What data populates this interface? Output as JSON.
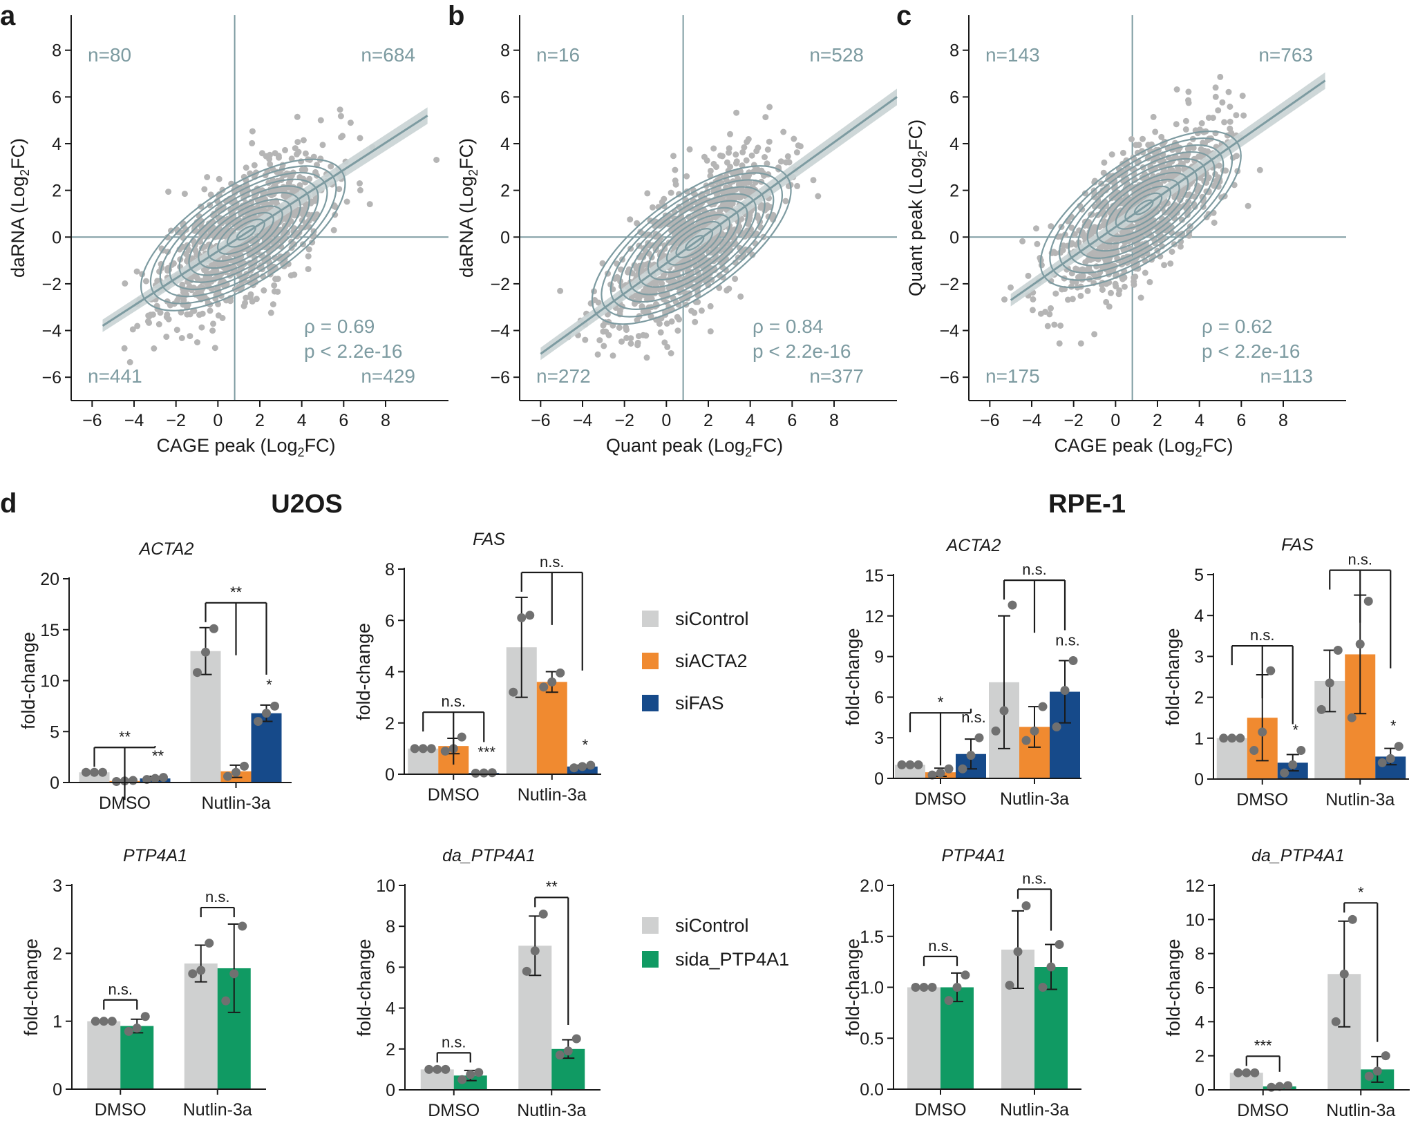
{
  "panels": [
    "a",
    "b",
    "c",
    "d"
  ],
  "colors": {
    "siControl": "#cfd0d0",
    "siACTA2": "#f08a30",
    "siFAS": "#164a8a",
    "sida_PTP4A1": "#109a63",
    "scatter_point": "#b5b5b5",
    "contour": "#7d9ba1",
    "dot": "#707070"
  },
  "chart_data": [
    {
      "type": "scatter",
      "panel": "a",
      "xlabel": "CAGE peak (Log2FC)",
      "ylabel": "daRNA (Log2FC)",
      "xticks": [
        -6,
        -4,
        -2,
        0,
        2,
        4,
        6,
        8
      ],
      "yticks": [
        -6,
        -4,
        -2,
        0,
        2,
        4,
        6,
        8
      ],
      "xlim": [
        -7,
        11
      ],
      "ylim": [
        -7,
        9.5
      ],
      "quadrant_counts": {
        "top_left": "n=80",
        "top_right": "n=684",
        "bottom_left": "n=441",
        "bottom_right": "n=429"
      },
      "rho": "ρ  =  0.69",
      "p": "p < 2.2e-16",
      "fit_line": {
        "x": [
          -5.5,
          10
        ],
        "y": [
          -3.8,
          5.2
        ]
      },
      "seed": 11
    },
    {
      "type": "scatter",
      "panel": "b",
      "xlabel": "Quant peak (Log2FC)",
      "ylabel": "daRNA (Log2FC)",
      "xticks": [
        -6,
        -4,
        -2,
        0,
        2,
        4,
        6,
        8
      ],
      "yticks": [
        -6,
        -4,
        -2,
        0,
        2,
        4,
        6,
        8
      ],
      "xlim": [
        -7,
        11
      ],
      "ylim": [
        -7,
        9.5
      ],
      "quadrant_counts": {
        "top_left": "n=16",
        "top_right": "n=528",
        "bottom_left": "n=272",
        "bottom_right": "n=377"
      },
      "rho": "ρ  =  0.84",
      "p": "p < 2.2e-16",
      "fit_line": {
        "x": [
          -6,
          11
        ],
        "y": [
          -5.0,
          6.0
        ]
      },
      "seed": 23
    },
    {
      "type": "scatter",
      "panel": "c",
      "xlabel": "CAGE peak (Log2FC)",
      "ylabel": "Quant peak (Log2FC)",
      "xticks": [
        -6,
        -4,
        -2,
        0,
        2,
        4,
        6,
        8
      ],
      "yticks": [
        -6,
        -4,
        -2,
        0,
        2,
        4,
        6,
        8
      ],
      "xlim": [
        -7,
        11
      ],
      "ylim": [
        -7,
        9.5
      ],
      "quadrant_counts": {
        "top_left": "n=143",
        "top_right": "n=763",
        "bottom_left": "n=175",
        "bottom_right": "n=113"
      },
      "rho": "ρ  =  0.62",
      "p": "p < 2.2e-16",
      "fit_line": {
        "x": [
          -5,
          10
        ],
        "y": [
          -2.7,
          6.7
        ]
      },
      "seed": 37
    },
    {
      "type": "bar",
      "panel": "d",
      "cell": "U2OS",
      "title": "ACTA2",
      "ylabel": "fold-change",
      "ylim": [
        0,
        20
      ],
      "yticks": [
        0,
        5,
        10,
        15,
        20
      ],
      "categories": [
        "DMSO",
        "Nutlin-3a"
      ],
      "series": [
        {
          "name": "siControl",
          "values": [
            1.0,
            12.9
          ],
          "errors": [
            0,
            2.3
          ],
          "points": [
            [
              1,
              1,
              1
            ],
            [
              10.8,
              12.8,
              15.1
            ]
          ]
        },
        {
          "name": "siACTA2",
          "values": [
            0.15,
            1.1
          ],
          "errors": [
            0.1,
            0.6
          ],
          "points": [
            [
              0.1,
              0.15,
              0.2
            ],
            [
              0.6,
              1.0,
              1.6
            ]
          ]
        },
        {
          "name": "siFAS",
          "values": [
            0.4,
            6.8
          ],
          "errors": [
            0.2,
            0.8
          ],
          "points": [
            [
              0.3,
              0.4,
              0.5
            ],
            [
              6.0,
              6.8,
              7.5
            ]
          ]
        }
      ],
      "sig": [
        {
          "type": "fork3",
          "group": 0,
          "label": "**"
        },
        {
          "type": "single",
          "group": 0,
          "series": 2,
          "label": "**"
        },
        {
          "type": "fork3",
          "group": 1,
          "label": "**"
        },
        {
          "type": "single",
          "group": 1,
          "series": 2,
          "label": "*"
        }
      ]
    },
    {
      "type": "bar",
      "panel": "d",
      "cell": "U2OS",
      "title": "FAS",
      "ylabel": "fold-change",
      "ylim": [
        0,
        8
      ],
      "yticks": [
        0,
        2,
        4,
        6,
        8
      ],
      "categories": [
        "DMSO",
        "Nutlin-3a"
      ],
      "series": [
        {
          "name": "siControl",
          "values": [
            1.0,
            4.95
          ],
          "errors": [
            0,
            1.95
          ],
          "points": [
            [
              1,
              1,
              1
            ],
            [
              3.2,
              6.1,
              6.2
            ]
          ]
        },
        {
          "name": "siACTA2",
          "values": [
            1.1,
            3.6
          ],
          "errors": [
            0.3,
            0.4
          ],
          "points": [
            [
              0.9,
              1.0,
              1.45
            ],
            [
              3.4,
              3.6,
              3.95
            ]
          ]
        },
        {
          "name": "siFAS",
          "values": [
            0.05,
            0.3
          ],
          "errors": [
            0.02,
            0.05
          ],
          "points": [
            [
              0.04,
              0.05,
              0.06
            ],
            [
              0.25,
              0.3,
              0.35
            ]
          ]
        }
      ],
      "sig": [
        {
          "type": "fork3",
          "group": 0,
          "label": "n.s."
        },
        {
          "type": "single",
          "group": 0,
          "series": 2,
          "label": "***"
        },
        {
          "type": "fork3",
          "group": 1,
          "label": "n.s."
        },
        {
          "type": "single",
          "group": 1,
          "series": 2,
          "label": "*"
        }
      ]
    },
    {
      "type": "bar",
      "panel": "d",
      "cell": "RPE-1",
      "title": "ACTA2",
      "ylabel": "fold-change",
      "ylim": [
        0,
        15
      ],
      "yticks": [
        0,
        3,
        6,
        9,
        12,
        15
      ],
      "categories": [
        "DMSO",
        "Nutlin-3a"
      ],
      "series": [
        {
          "name": "siControl",
          "values": [
            1.0,
            7.1
          ],
          "errors": [
            0,
            4.9
          ],
          "points": [
            [
              1,
              1,
              1
            ],
            [
              3.5,
              5.0,
              12.8
            ]
          ]
        },
        {
          "name": "siACTA2",
          "values": [
            0.45,
            3.8
          ],
          "errors": [
            0.3,
            1.5
          ],
          "points": [
            [
              0.25,
              0.4,
              0.7
            ],
            [
              2.8,
              3.5,
              5.3
            ]
          ]
        },
        {
          "name": "siFAS",
          "values": [
            1.8,
            6.4
          ],
          "errors": [
            1.1,
            2.3
          ],
          "points": [
            [
              0.7,
              1.7,
              3.0
            ],
            [
              3.8,
              6.5,
              8.7
            ]
          ]
        }
      ],
      "sig": [
        {
          "type": "fork3",
          "group": 0,
          "label": "*"
        },
        {
          "type": "single",
          "group": 0,
          "series": 2,
          "label": "n.s."
        },
        {
          "type": "fork3",
          "group": 1,
          "label": "n.s."
        },
        {
          "type": "single",
          "group": 1,
          "series": 2,
          "label": "n.s."
        }
      ]
    },
    {
      "type": "bar",
      "panel": "d",
      "cell": "RPE-1",
      "title": "FAS",
      "ylabel": "fold-change",
      "ylim": [
        0,
        5
      ],
      "yticks": [
        0,
        1,
        2,
        3,
        4,
        5
      ],
      "categories": [
        "DMSO",
        "Nutlin-3a"
      ],
      "series": [
        {
          "name": "siControl",
          "values": [
            1.0,
            2.4
          ],
          "errors": [
            0,
            0.75
          ],
          "points": [
            [
              1,
              1,
              1
            ],
            [
              1.7,
              2.35,
              3.15
            ]
          ]
        },
        {
          "name": "siACTA2",
          "values": [
            1.5,
            3.05
          ],
          "errors": [
            1.05,
            1.45
          ],
          "points": [
            [
              0.7,
              1.15,
              2.65
            ],
            [
              1.5,
              3.3,
              4.35
            ]
          ]
        },
        {
          "name": "siFAS",
          "values": [
            0.4,
            0.55
          ],
          "errors": [
            0.2,
            0.2
          ],
          "points": [
            [
              0.15,
              0.35,
              0.7
            ],
            [
              0.4,
              0.5,
              0.8
            ]
          ]
        }
      ],
      "sig": [
        {
          "type": "fork3",
          "group": 0,
          "label": "n.s."
        },
        {
          "type": "single",
          "group": 0,
          "series": 2,
          "label": "*"
        },
        {
          "type": "fork3",
          "group": 1,
          "label": "n.s."
        },
        {
          "type": "single",
          "group": 1,
          "series": 2,
          "label": "*"
        }
      ]
    },
    {
      "type": "bar",
      "panel": "d",
      "cell": "U2OS",
      "title": "PTP4A1",
      "ylabel": "fold-change",
      "ylim": [
        0,
        3
      ],
      "yticks": [
        0,
        1,
        2,
        3
      ],
      "categories": [
        "DMSO",
        "Nutlin-3a"
      ],
      "series": [
        {
          "name": "siControl",
          "values": [
            1.0,
            1.85
          ],
          "errors": [
            0,
            0.27
          ],
          "points": [
            [
              1,
              1,
              1
            ],
            [
              1.7,
              1.75,
              2.15
            ]
          ]
        },
        {
          "name": "sida_PTP4A1",
          "values": [
            0.93,
            1.78
          ],
          "errors": [
            0.1,
            0.65
          ],
          "points": [
            [
              0.85,
              0.9,
              1.07
            ],
            [
              1.3,
              1.7,
              2.4
            ]
          ]
        }
      ],
      "sig": [
        {
          "type": "pair",
          "group": 0,
          "label": "n.s."
        },
        {
          "type": "pair",
          "group": 1,
          "label": "n.s."
        }
      ]
    },
    {
      "type": "bar",
      "panel": "d",
      "cell": "U2OS",
      "title": "da_PTP4A1",
      "ylabel": "fold-change",
      "ylim": [
        0,
        10
      ],
      "yticks": [
        0,
        2,
        4,
        6,
        8,
        10
      ],
      "categories": [
        "DMSO",
        "Nutlin-3a"
      ],
      "series": [
        {
          "name": "siControl",
          "values": [
            1.0,
            7.05
          ],
          "errors": [
            0,
            1.45
          ],
          "points": [
            [
              1,
              1,
              1
            ],
            [
              5.8,
              6.8,
              8.6
            ]
          ]
        },
        {
          "name": "sida_PTP4A1",
          "values": [
            0.7,
            2.0
          ],
          "errors": [
            0.25,
            0.45
          ],
          "points": [
            [
              0.5,
              0.75,
              0.85
            ],
            [
              1.7,
              1.9,
              2.5
            ]
          ]
        }
      ],
      "sig": [
        {
          "type": "pair",
          "group": 0,
          "label": "n.s."
        },
        {
          "type": "pair",
          "group": 1,
          "label": "**"
        }
      ]
    },
    {
      "type": "bar",
      "panel": "d",
      "cell": "RPE-1",
      "title": "PTP4A1",
      "ylabel": "fold-change",
      "ylim": [
        0,
        2.0
      ],
      "yticks": [
        0.0,
        0.5,
        1.0,
        1.5,
        2.0
      ],
      "categories": [
        "DMSO",
        "Nutlin-3a"
      ],
      "series": [
        {
          "name": "siControl",
          "values": [
            1.0,
            1.37
          ],
          "errors": [
            0,
            0.38
          ],
          "points": [
            [
              1,
              1,
              1
            ],
            [
              1.02,
              1.35,
              1.8
            ]
          ]
        },
        {
          "name": "sida_PTP4A1",
          "values": [
            1.0,
            1.2
          ],
          "errors": [
            0.14,
            0.22
          ],
          "points": [
            [
              0.87,
              1.0,
              1.12
            ],
            [
              1.0,
              1.2,
              1.42
            ]
          ]
        }
      ],
      "sig": [
        {
          "type": "pair",
          "group": 0,
          "label": "n.s."
        },
        {
          "type": "pair",
          "group": 1,
          "label": "n.s."
        }
      ]
    },
    {
      "type": "bar",
      "panel": "d",
      "cell": "RPE-1",
      "title": "da_PTP4A1",
      "ylabel": "fold-change",
      "ylim": [
        0,
        12
      ],
      "yticks": [
        0,
        2,
        4,
        6,
        8,
        10,
        12
      ],
      "categories": [
        "DMSO",
        "Nutlin-3a"
      ],
      "series": [
        {
          "name": "siControl",
          "values": [
            1.0,
            6.8
          ],
          "errors": [
            0,
            3.1
          ],
          "points": [
            [
              1,
              1,
              1
            ],
            [
              4.0,
              6.8,
              10.0
            ]
          ]
        },
        {
          "name": "sida_PTP4A1",
          "values": [
            0.2,
            1.2
          ],
          "errors": [
            0.05,
            0.75
          ],
          "points": [
            [
              0.15,
              0.2,
              0.25
            ],
            [
              0.8,
              1.1,
              2.0
            ]
          ]
        }
      ],
      "sig": [
        {
          "type": "pair",
          "group": 0,
          "label": "***"
        },
        {
          "type": "pair",
          "group": 1,
          "label": "*"
        }
      ]
    }
  ],
  "legend_top": [
    {
      "name": "siControl",
      "color": "#cfd0d0"
    },
    {
      "name": "siACTA2",
      "color": "#f08a30"
    },
    {
      "name": "siFAS",
      "color": "#164a8a"
    }
  ],
  "legend_bottom": [
    {
      "name": "siControl",
      "color": "#cfd0d0"
    },
    {
      "name": "sida_PTP4A1",
      "color": "#109a63"
    }
  ],
  "cell_lines": [
    "U2OS",
    "RPE-1"
  ]
}
